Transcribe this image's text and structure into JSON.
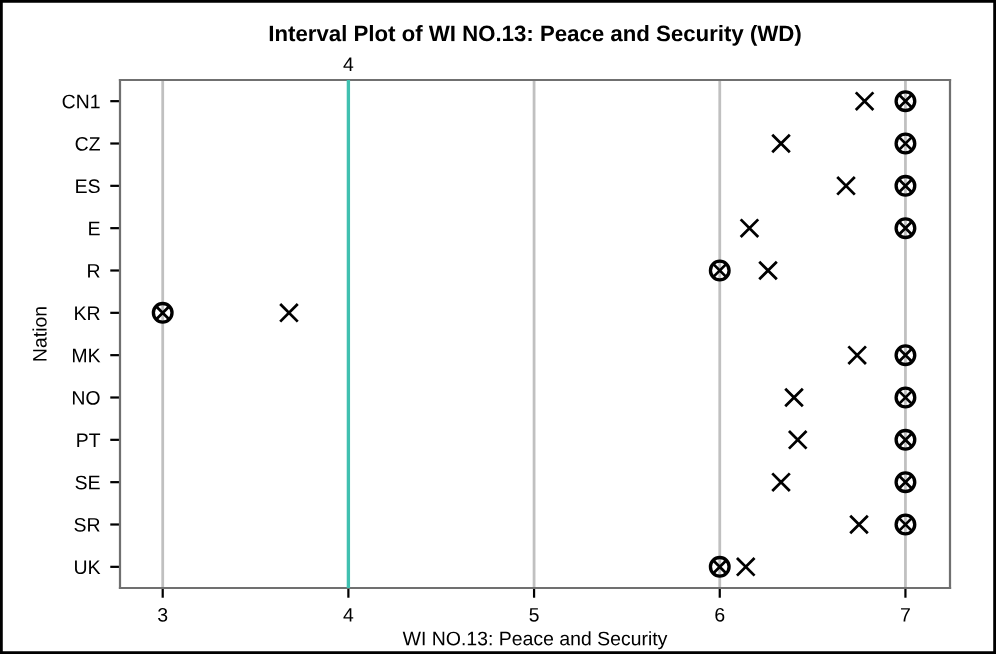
{
  "chart_data": {
    "type": "scatter",
    "title": "Interval Plot of WI NO.13: Peace and Security (WD)",
    "xlabel": "WI NO.13: Peace and Security",
    "ylabel": "Nation",
    "orientation": "horizontal",
    "categories": [
      "CN1",
      "CZ",
      "ES",
      "E",
      "R",
      "KR",
      "MK",
      "NO",
      "PT",
      "SE",
      "SR",
      "UK"
    ],
    "series": [
      {
        "color": "#000000",
        "marker": "cross",
        "values": [
          6.78,
          6.33,
          6.68,
          6.16,
          6.26,
          3.68,
          6.74,
          6.4,
          6.42,
          6.33,
          6.75,
          6.14
        ]
      },
      {
        "color": "#000000",
        "marker": "circle",
        "values": [
          7,
          7,
          7,
          7,
          6,
          3,
          7,
          7,
          7,
          7,
          7,
          6
        ]
      }
    ],
    "xlim": [
      2.77,
      7.24
    ],
    "xticks": [
      3,
      4,
      5,
      6,
      7
    ],
    "grid": "x",
    "ref_lines": [
      {
        "axis": "x",
        "value": 4,
        "label": "4",
        "color": "#40c0b0"
      }
    ]
  }
}
